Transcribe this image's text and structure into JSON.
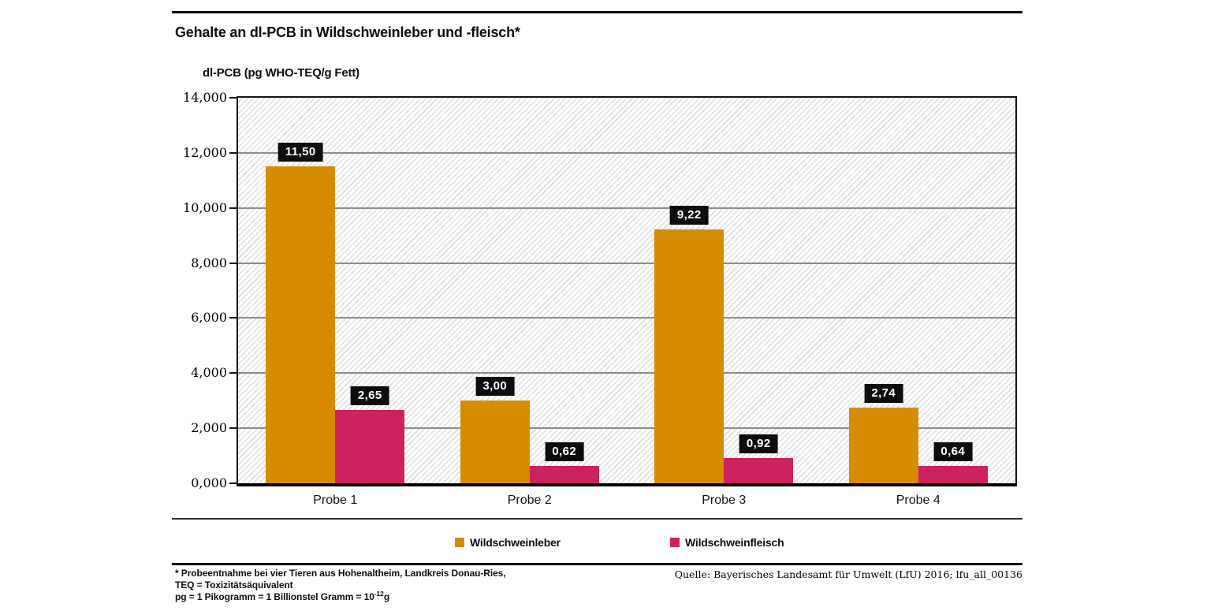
{
  "header": {
    "title": "Gehalte an dl-PCB in Wildschweinleber und -fleisch*"
  },
  "chart_data": {
    "type": "bar",
    "title": "Gehalte an dl-PCB in Wildschweinleber und -fleisch*",
    "ylabel": "dl-PCB (pg WHO-TEQ/g Fett)",
    "xlabel": "",
    "categories": [
      "Probe 1",
      "Probe 2",
      "Probe 3",
      "Probe 4"
    ],
    "series": [
      {
        "name": "Wildschweinleber",
        "color": "#D78C00",
        "values": [
          11.5,
          3.0,
          9.22,
          2.74
        ],
        "value_labels": [
          "11,50",
          "3,00",
          "9,22",
          "2,74"
        ]
      },
      {
        "name": "Wildschweinfleisch",
        "color": "#CE2160",
        "values": [
          2.65,
          0.62,
          0.92,
          0.64
        ],
        "value_labels": [
          "2,65",
          "0,62",
          "0,92",
          "0,64"
        ]
      }
    ],
    "ylim": [
      0,
      14
    ],
    "ytick_step": 2,
    "ytick_labels": [
      "0,000",
      "2,000",
      "4,000",
      "6,000",
      "8,000",
      "10,000",
      "12,000",
      "14,000"
    ],
    "grid": true,
    "legend_position": "bottom",
    "value_label_style": {
      "bg": "#0D0D0D",
      "fg": "#FFFFFF"
    }
  },
  "footnotes": {
    "line1": "* Probeentnahme bei vier Tieren aus Hohenaltheim, Landkreis Donau-Ries,",
    "line2": "TEQ = Toxizitätsäquivalent",
    "line3_prefix": "pg = 1 Pikogramm = 1 Billionstel Gramm = 10",
    "line3_sup": "-12",
    "line3_suffix": "g"
  },
  "source": "Quelle: Bayerisches Landesamt für Umwelt (LfU) 2016; lfu_all_00136"
}
